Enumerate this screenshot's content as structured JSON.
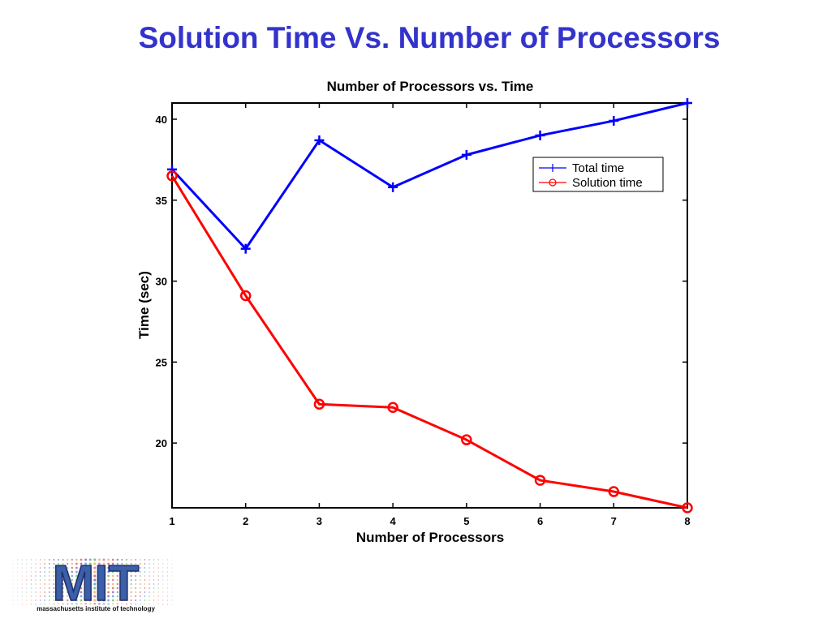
{
  "slide": {
    "title": "Solution Time Vs. Number of Processors"
  },
  "logo": {
    "text": "MIT",
    "caption": "massachusetts institute of technology"
  },
  "chart_data": {
    "type": "line",
    "title": "Number of Processors vs. Time",
    "xlabel": "Number of Processors",
    "ylabel": "Time (sec)",
    "x": [
      1,
      2,
      3,
      4,
      5,
      6,
      7,
      8
    ],
    "xlim": [
      1,
      8
    ],
    "ylim": [
      16,
      41
    ],
    "yticks": [
      20,
      25,
      30,
      35,
      40
    ],
    "xticks": [
      1,
      2,
      3,
      4,
      5,
      6,
      7,
      8
    ],
    "grid": false,
    "legend_position": "upper-right",
    "series": [
      {
        "name": "Total time",
        "color": "#0000ff",
        "marker": "plus",
        "values": [
          36.9,
          32.0,
          38.7,
          35.8,
          37.8,
          39.0,
          39.9,
          41.0
        ]
      },
      {
        "name": "Solution time",
        "color": "#ff0000",
        "marker": "circle",
        "values": [
          36.5,
          29.1,
          22.4,
          22.2,
          20.2,
          17.7,
          17.0,
          16.0
        ]
      }
    ]
  }
}
